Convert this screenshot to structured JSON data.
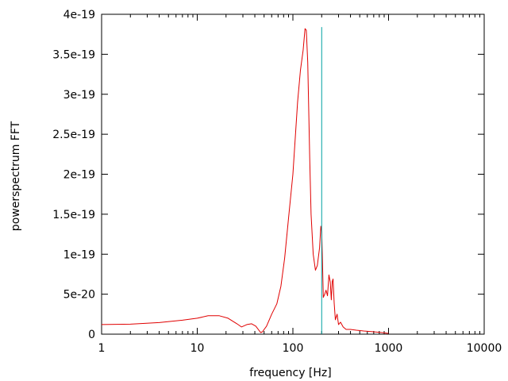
{
  "chart_data": {
    "type": "line",
    "title": "",
    "xlabel": "frequency [Hz]",
    "ylabel": "powerspectrum FFT",
    "x_scale": "log",
    "xlim": [
      1,
      10000
    ],
    "ylim": [
      0,
      4e-19
    ],
    "grid": false,
    "legend": "none",
    "x_ticks": [
      {
        "value": 1,
        "label": "1"
      },
      {
        "value": 10,
        "label": "10"
      },
      {
        "value": 100,
        "label": "100"
      },
      {
        "value": 1000,
        "label": "1000"
      },
      {
        "value": 10000,
        "label": "10000"
      }
    ],
    "y_ticks": [
      {
        "value": 0,
        "label": "0"
      },
      {
        "value": 5e-20,
        "label": "5e-20"
      },
      {
        "value": 1e-19,
        "label": "1e-19"
      },
      {
        "value": 1.5e-19,
        "label": "1.5e-19"
      },
      {
        "value": 2e-19,
        "label": "2e-19"
      },
      {
        "value": 2.5e-19,
        "label": "2.5e-19"
      },
      {
        "value": 3e-19,
        "label": "3e-19"
      },
      {
        "value": 3.5e-19,
        "label": "3.5e-19"
      },
      {
        "value": 4e-19,
        "label": "4e-19"
      }
    ],
    "series": [
      {
        "color": "#e00000",
        "points": [
          [
            1,
            1.2e-20
          ],
          [
            2,
            1.25e-20
          ],
          [
            4,
            1.45e-20
          ],
          [
            7,
            1.75e-20
          ],
          [
            10,
            2e-20
          ],
          [
            13,
            2.3e-20
          ],
          [
            17,
            2.3e-20
          ],
          [
            21,
            2e-20
          ],
          [
            26,
            1.3e-20
          ],
          [
            29,
            9e-21
          ],
          [
            33,
            1.2e-20
          ],
          [
            37,
            1.3e-20
          ],
          [
            41,
            1e-20
          ],
          [
            46,
            2e-21
          ],
          [
            48,
            3e-21
          ],
          [
            53,
            1e-20
          ],
          [
            60,
            2.5e-20
          ],
          [
            68,
            3.8e-20
          ],
          [
            75,
            6e-20
          ],
          [
            82,
            9.5e-20
          ],
          [
            90,
            1.45e-19
          ],
          [
            100,
            2e-19
          ],
          [
            112,
            2.9e-19
          ],
          [
            120,
            3.3e-19
          ],
          [
            128,
            3.55e-19
          ],
          [
            134,
            3.82e-19
          ],
          [
            138,
            3.8e-19
          ],
          [
            143,
            3.4e-19
          ],
          [
            150,
            2.2e-19
          ],
          [
            155,
            1.5e-19
          ],
          [
            163,
            1e-19
          ],
          [
            172,
            8e-20
          ],
          [
            180,
            8.6e-20
          ],
          [
            190,
            1.08e-19
          ],
          [
            196,
            1.35e-19
          ],
          [
            200,
            1.28e-19
          ],
          [
            204,
            9e-20
          ],
          [
            208,
            4.6e-20
          ],
          [
            215,
            5e-20
          ],
          [
            222,
            5.5e-20
          ],
          [
            230,
            4.8e-20
          ],
          [
            238,
            7.4e-20
          ],
          [
            246,
            6.5e-20
          ],
          [
            252,
            4.3e-20
          ],
          [
            258,
            6.6e-20
          ],
          [
            263,
            6.9e-20
          ],
          [
            270,
            3.9e-20
          ],
          [
            278,
            1.8e-20
          ],
          [
            290,
            2.5e-20
          ],
          [
            300,
            1.2e-20
          ],
          [
            315,
            1.5e-20
          ],
          [
            335,
            9e-21
          ],
          [
            360,
            6e-21
          ],
          [
            400,
            6e-21
          ],
          [
            460,
            5e-21
          ],
          [
            550,
            4e-21
          ],
          [
            700,
            3e-21
          ],
          [
            850,
            2e-21
          ],
          [
            1000,
            1e-21
          ]
        ]
      }
    ],
    "vertical_markers": [
      {
        "x": 200,
        "y_top": 3.84e-19,
        "color": "#00a0a0"
      }
    ]
  }
}
